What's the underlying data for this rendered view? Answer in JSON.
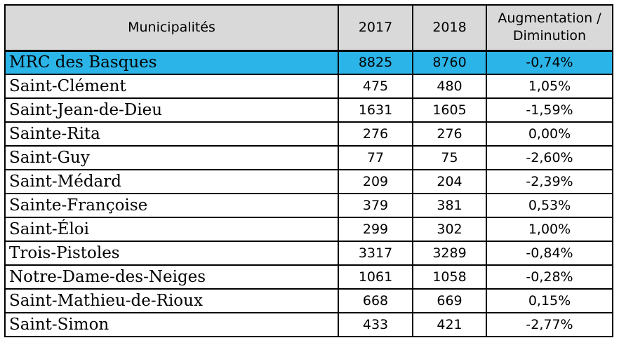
{
  "table": {
    "headers": {
      "municipality": "Municipalités",
      "year1": "2017",
      "year2": "2018",
      "change_line1": "Augmentation /",
      "change_line2": "Diminution"
    },
    "highlight_color": "#2bb4e8",
    "header_background": "#d9d9d9",
    "rows": [
      {
        "name": "MRC des Basques",
        "y2017": "8825",
        "y2018": "8760",
        "change": "-0,74%"
      },
      {
        "name": "Saint-Clément",
        "y2017": "475",
        "y2018": "480",
        "change": "1,05%"
      },
      {
        "name": "Saint-Jean-de-Dieu",
        "y2017": "1631",
        "y2018": "1605",
        "change": "-1,59%"
      },
      {
        "name": "Sainte-Rita",
        "y2017": "276",
        "y2018": "276",
        "change": "0,00%"
      },
      {
        "name": "Saint-Guy",
        "y2017": "77",
        "y2018": "75",
        "change": "-2,60%"
      },
      {
        "name": "Saint-Médard",
        "y2017": "209",
        "y2018": "204",
        "change": "-2,39%"
      },
      {
        "name": "Sainte-Françoise",
        "y2017": "379",
        "y2018": "381",
        "change": "0,53%"
      },
      {
        "name": "Saint-Éloi",
        "y2017": "299",
        "y2018": "302",
        "change": "1,00%"
      },
      {
        "name": "Trois-Pistoles",
        "y2017": "3317",
        "y2018": "3289",
        "change": "-0,84%"
      },
      {
        "name": "Notre-Dame-des-Neiges",
        "y2017": "1061",
        "y2018": "1058",
        "change": "-0,28%"
      },
      {
        "name": "Saint-Mathieu-de-Rioux",
        "y2017": "668",
        "y2018": "669",
        "change": "0,15%"
      },
      {
        "name": "Saint-Simon",
        "y2017": "433",
        "y2018": "421",
        "change": "-2,77%"
      }
    ]
  }
}
